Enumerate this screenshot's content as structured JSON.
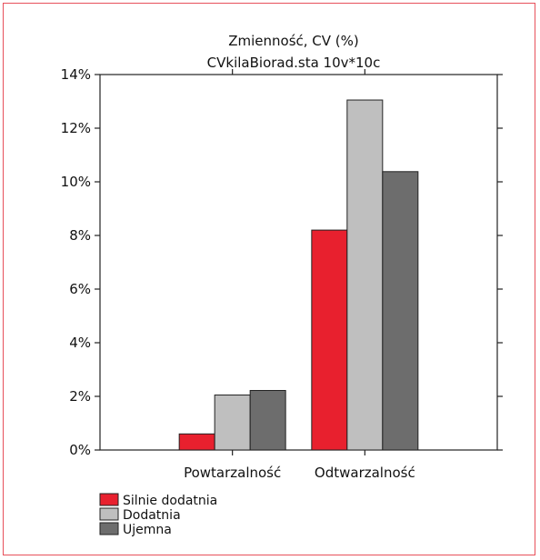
{
  "chart_data": {
    "type": "bar",
    "title": "Zmienność, CV (%)",
    "subtitle": "CVkilaBiorad.sta 10v*10c",
    "categories": [
      "Powtarzalność",
      "Odtwarzalność"
    ],
    "series": [
      {
        "name": "Silnie dodatnia",
        "color": "#e8202e",
        "values": [
          0.6,
          8.2
        ]
      },
      {
        "name": "Dodatnia",
        "color": "#bfbfbf",
        "values": [
          2.05,
          13.05
        ]
      },
      {
        "name": "Ujemna",
        "color": "#6d6d6d",
        "values": [
          2.22,
          10.38
        ]
      }
    ],
    "ylim": [
      0,
      14
    ],
    "yticks": [
      0,
      2,
      4,
      6,
      8,
      10,
      12,
      14
    ],
    "ytick_labels": [
      "0%",
      "2%",
      "4%",
      "6%",
      "8%",
      "10%",
      "12%",
      "14%"
    ],
    "xlabel": "",
    "ylabel": "",
    "grid": false,
    "legend_position": "bottom-left"
  }
}
